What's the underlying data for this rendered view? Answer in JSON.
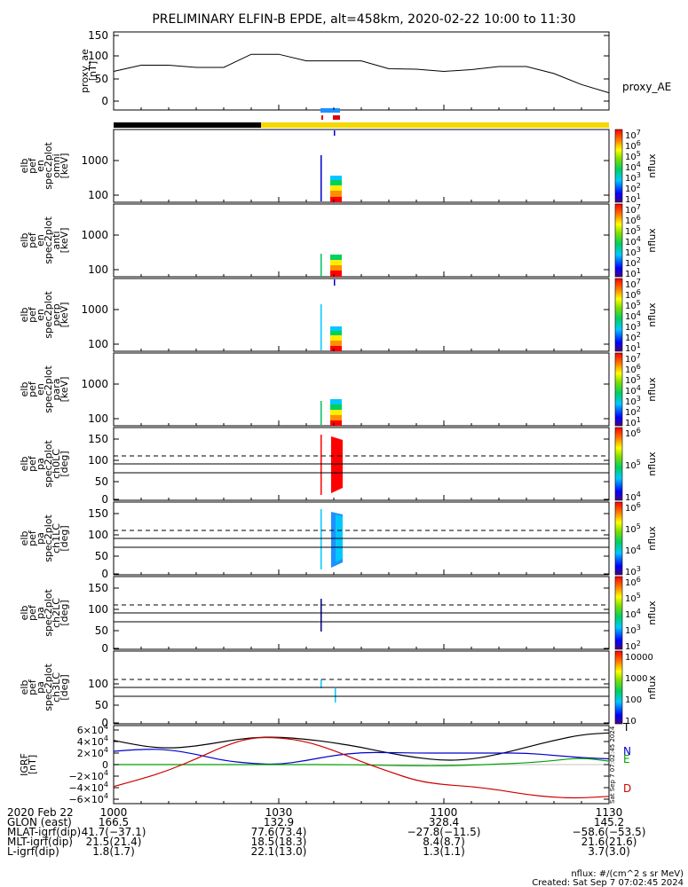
{
  "title": "PRELIMINARY ELFIN-B EPDE, alt=458km, 2020-02-22 10:00 to 11:30",
  "chart_data": [
    {
      "type": "line",
      "panel": "proxy_ae",
      "ylabel": [
        "proxy_ae",
        "[nT]"
      ],
      "yticks": [
        "150",
        "100",
        "50",
        "0"
      ],
      "ylim": [
        -10,
        160
      ],
      "legend": "proxy_AE",
      "x_minutes": [
        0,
        5,
        10,
        15,
        20,
        25,
        30,
        35,
        40,
        45,
        50,
        55,
        60,
        65,
        70,
        75,
        80,
        85,
        90
      ],
      "values": [
        68,
        82,
        82,
        77,
        77,
        107,
        107,
        92,
        92,
        92,
        74,
        73,
        68,
        72,
        79,
        79,
        63,
        38,
        19
      ]
    },
    {
      "type": "heatmap",
      "panel": "omni",
      "ylabel": [
        "elb",
        "pef",
        "en",
        "spec2plot",
        "omni",
        "[keV]"
      ],
      "yticks": [
        "1000",
        "100"
      ],
      "colorbar": {
        "label": "nflux",
        "ticks": [
          "10^7",
          "10^6",
          "10^5",
          "10^4",
          "10^3",
          "10^2",
          "10^1"
        ]
      }
    },
    {
      "type": "heatmap",
      "panel": "anti",
      "ylabel": [
        "elb",
        "pef",
        "en",
        "spec2plot",
        "anti",
        "[keV]"
      ],
      "yticks": [
        "1000",
        "100"
      ],
      "colorbar": {
        "label": "nflux",
        "ticks": [
          "10^7",
          "10^6",
          "10^5",
          "10^4",
          "10^3",
          "10^2",
          "10^1"
        ]
      }
    },
    {
      "type": "heatmap",
      "panel": "perp",
      "ylabel": [
        "elb",
        "pef",
        "en",
        "spec2plot",
        "perp",
        "[keV]"
      ],
      "yticks": [
        "1000",
        "100"
      ],
      "colorbar": {
        "label": "nflux",
        "ticks": [
          "10^7",
          "10^6",
          "10^5",
          "10^4",
          "10^3",
          "10^2",
          "10^1"
        ]
      }
    },
    {
      "type": "heatmap",
      "panel": "para",
      "ylabel": [
        "elb",
        "pef",
        "en",
        "spec2plot",
        "para",
        "[keV]"
      ],
      "yticks": [
        "1000",
        "100"
      ],
      "colorbar": {
        "label": "nflux",
        "ticks": [
          "10^7",
          "10^6",
          "10^5",
          "10^4",
          "10^3",
          "10^2",
          "10^1"
        ]
      }
    },
    {
      "type": "heatmap",
      "panel": "ch0LC",
      "ylabel": [
        "elb",
        "pef",
        "pa",
        "spec2plot",
        "ch0LC",
        "[deg]"
      ],
      "yticks": [
        "150",
        "100",
        "50",
        "0"
      ],
      "colorbar": {
        "label": "nflux",
        "ticks": [
          "10^6",
          "10^5",
          "10^4"
        ]
      }
    },
    {
      "type": "heatmap",
      "panel": "ch1LC",
      "ylabel": [
        "elb",
        "pef",
        "pa",
        "spec2plot",
        "ch1LC",
        "[deg]"
      ],
      "yticks": [
        "150",
        "100",
        "50",
        "0"
      ],
      "colorbar": {
        "label": "nflux",
        "ticks": [
          "10^6",
          "10^5",
          "10^4",
          "10^3"
        ]
      }
    },
    {
      "type": "heatmap",
      "panel": "ch2LC",
      "ylabel": [
        "elb",
        "pef",
        "pa",
        "spec2plot",
        "ch2LC",
        "[deg]"
      ],
      "yticks": [
        "150",
        "100",
        "50",
        "0"
      ],
      "colorbar": {
        "label": "nflux",
        "ticks": [
          "10^6",
          "10^5",
          "10^4",
          "10^3",
          "10^2"
        ]
      }
    },
    {
      "type": "heatmap",
      "panel": "ch3LC",
      "ylabel": [
        "elb",
        "pef",
        "pa",
        "spec2plot",
        "ch3LC",
        "[deg]"
      ],
      "yticks": [
        "100",
        "50",
        "0"
      ],
      "colorbar": {
        "label": "nflux",
        "ticks": [
          "10000",
          "1000",
          "100",
          "10"
        ]
      }
    },
    {
      "type": "line",
      "panel": "IGRF",
      "ylabel": [
        "IGRF",
        "[nT]"
      ],
      "yticks": [
        "6×10^4",
        "4×10^4",
        "2×10^4",
        "0",
        "−2×10^4",
        "−4×10^4",
        "−6×10^4"
      ],
      "ylim": [
        -66000,
        66000
      ],
      "legend": [
        "T",
        "N",
        "E",
        "D"
      ],
      "x_minutes": [
        0,
        5,
        10,
        15,
        20,
        25,
        30,
        35,
        40,
        45,
        50,
        55,
        60,
        65,
        70,
        75,
        80,
        85,
        90
      ],
      "series": [
        {
          "name": "T",
          "color": "#000000",
          "values": [
            42000,
            32000,
            28000,
            32000,
            40000,
            47000,
            48000,
            44000,
            38000,
            30000,
            20000,
            12000,
            7000,
            9000,
            18000,
            30000,
            42000,
            52000,
            55000
          ]
        },
        {
          "name": "N",
          "color": "#0000cc",
          "values": [
            23000,
            27000,
            26000,
            18000,
            7000,
            2000,
            0,
            7000,
            16000,
            21000,
            21000,
            20000,
            20000,
            20000,
            20000,
            20000,
            16000,
            12000,
            10000
          ]
        },
        {
          "name": "E",
          "color": "#00a000",
          "values": [
            0,
            0,
            0,
            0,
            0,
            0,
            0,
            0,
            0,
            -500,
            -1500,
            -2000,
            -2000,
            -1000,
            1000,
            3000,
            7000,
            12000,
            6000
          ]
        },
        {
          "name": "D",
          "color": "#cc0000",
          "values": [
            -38000,
            -25000,
            -10000,
            10000,
            32000,
            47000,
            47000,
            40000,
            25000,
            5000,
            -12000,
            -28000,
            -35000,
            -38000,
            -44000,
            -52000,
            -57000,
            -58000,
            -55000
          ]
        }
      ]
    }
  ],
  "x_axis": {
    "tick_minutes": [
      0,
      30,
      60,
      90
    ],
    "labels": [
      "1000",
      "1030",
      "1100",
      "1130"
    ],
    "rows": [
      {
        "label": "2020 Feb 22",
        "values": [
          "",
          "",
          "",
          ""
        ]
      },
      {
        "label": "GLON (east)",
        "values": [
          "166.5",
          "132.9",
          "328.4",
          "145.2"
        ]
      },
      {
        "label": "MLAT-igrf(dip)",
        "values": [
          "41.7(−37.1)",
          "77.6(73.4)",
          "−27.8(−11.5)",
          "−58.6(−53.5)"
        ]
      },
      {
        "label": "MLT-igrf(dip)",
        "values": [
          "21.5(21.4)",
          "18.5(18.3)",
          "8.4(8.7)",
          "21.6(21.6)"
        ]
      },
      {
        "label": "L-igrf(dip)",
        "values": [
          "1.8(1.7)",
          "22.1(13.0)",
          "1.3(1.1)",
          "3.7(3.0)"
        ]
      }
    ]
  },
  "footer": {
    "units": "nflux: #/(cm^2 s sr MeV)",
    "created": "Created: Sat Sep  7 07:02:45 2024",
    "stamp": "Sat Sep 7 07:02:45 2024"
  }
}
